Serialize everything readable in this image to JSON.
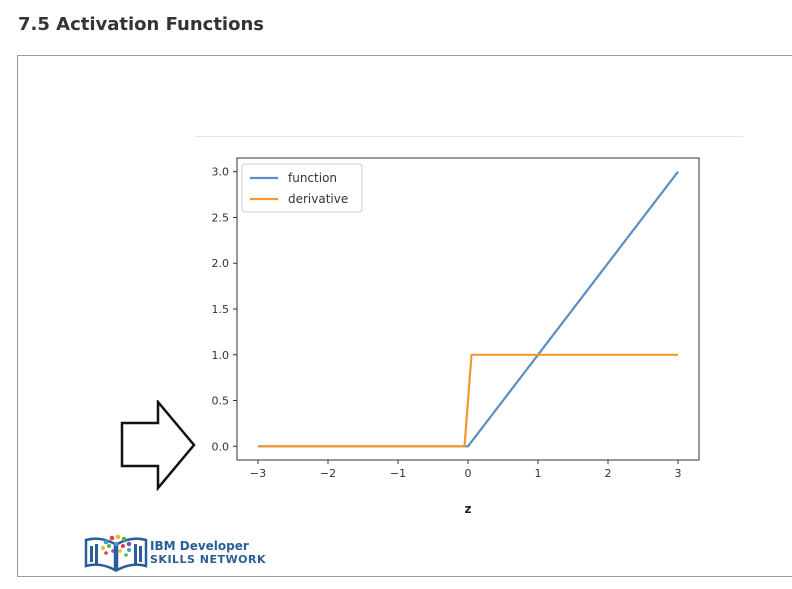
{
  "heading": "7.5 Activation Functions",
  "chart_data": {
    "type": "line",
    "title": "",
    "xlabel": "z",
    "ylabel": "",
    "xlim": [
      -3.3,
      3.3
    ],
    "ylim": [
      -0.15,
      3.15
    ],
    "xticks": [
      -3,
      -2,
      -1,
      0,
      1,
      2,
      3
    ],
    "yticks": [
      0.0,
      0.5,
      1.0,
      1.5,
      2.0,
      2.5,
      3.0
    ],
    "xtick_labels": [
      "−3",
      "−2",
      "−1",
      "0",
      "1",
      "2",
      "3"
    ],
    "ytick_labels": [
      "0.0",
      "0.5",
      "1.0",
      "1.5",
      "2.0",
      "2.5",
      "3.0"
    ],
    "legend_position": "top-left",
    "grid": false,
    "series": [
      {
        "name": "function",
        "color": "#5b8fc4",
        "x": [
          -3,
          -2,
          -1,
          0,
          1,
          2,
          3
        ],
        "y": [
          0,
          0,
          0,
          0,
          1,
          2,
          3
        ]
      },
      {
        "name": "derivative",
        "color": "#f39a2e",
        "x": [
          -3,
          -2,
          -1,
          -0.05,
          0.05,
          1,
          2,
          3
        ],
        "y": [
          0,
          0,
          0,
          0,
          1,
          1,
          1,
          1
        ]
      }
    ]
  },
  "logo": {
    "line1": "IBM Developer",
    "line2": "SKILLS NETWORK",
    "primary_color": "#2a5e96"
  },
  "icons": {
    "pointer": "right-arrow-outline-icon"
  }
}
